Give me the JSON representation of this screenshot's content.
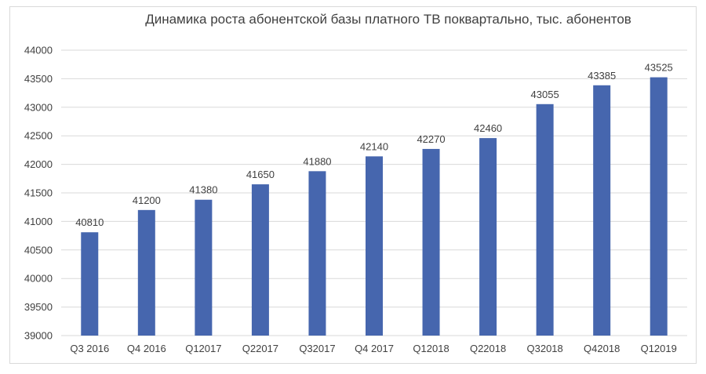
{
  "chart_data": {
    "type": "bar",
    "title": "Динамика роста абонентской базы платного ТВ поквартально, тыс. абонентов",
    "categories": [
      "Q3 2016",
      "Q4 2016",
      "Q12017",
      "Q22017",
      "Q32017",
      "Q4 2017",
      "Q12018",
      "Q22018",
      "Q32018",
      "Q42018",
      "Q12019"
    ],
    "values": [
      40810,
      41200,
      41380,
      41650,
      41880,
      42140,
      42270,
      42460,
      43055,
      43385,
      43525
    ],
    "data_labels": [
      "40810",
      "41200",
      "41380",
      "41650",
      "41880",
      "42140",
      "42270",
      "42460",
      "43055",
      "43385",
      "43525"
    ],
    "yticks": [
      "39000",
      "39500",
      "40000",
      "40500",
      "41000",
      "41500",
      "42000",
      "42500",
      "43000",
      "43500",
      "44000"
    ],
    "ylim": [
      39000,
      44000
    ],
    "xlabel": "",
    "ylabel": "",
    "grid": true,
    "legend": "none",
    "bar_color": "#4666ae"
  }
}
